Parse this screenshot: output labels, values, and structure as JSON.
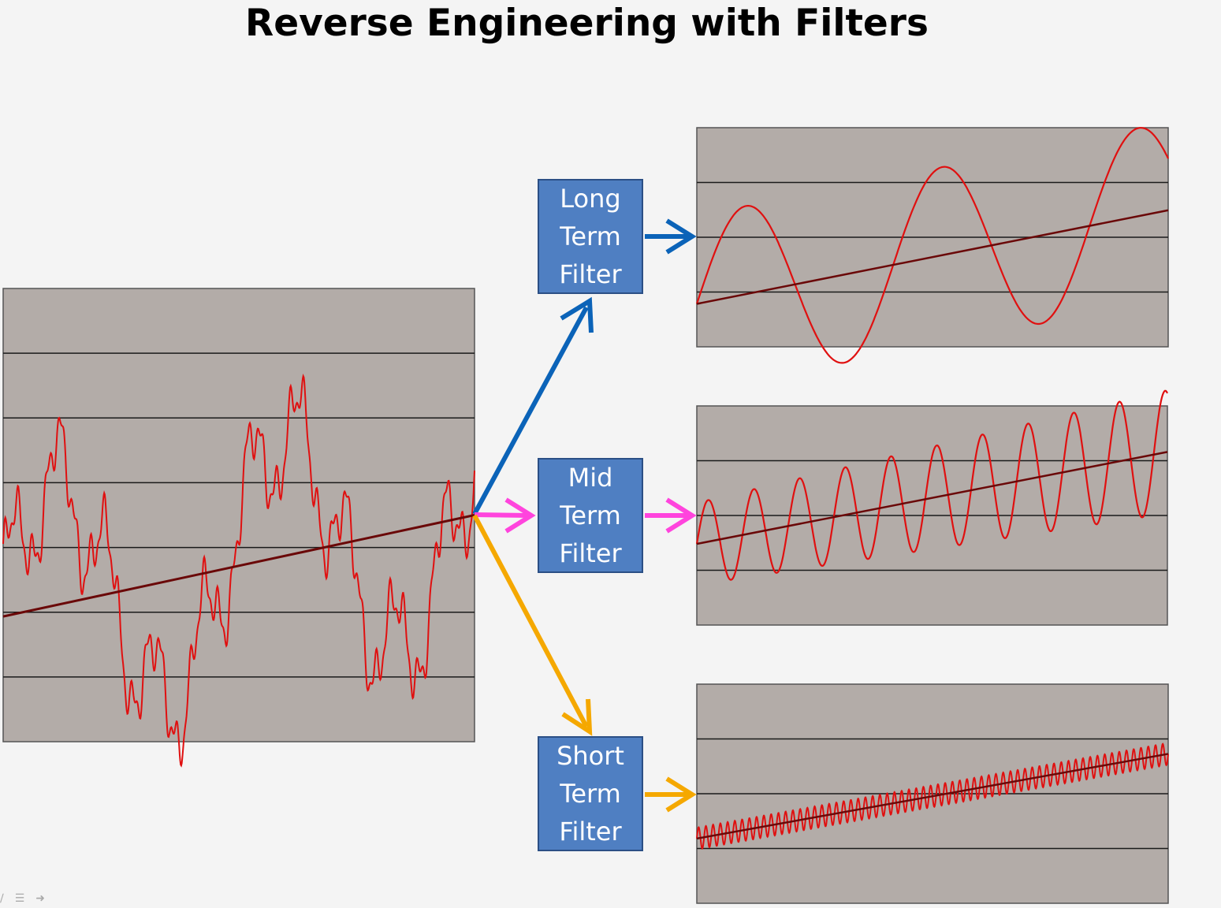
{
  "title": "Reverse Engineering with Filters",
  "filters": [
    {
      "key": "long",
      "lines": [
        "Long",
        "Term",
        "Filter"
      ]
    },
    {
      "key": "mid",
      "lines": [
        "Mid",
        "Term",
        "Filter"
      ]
    },
    {
      "key": "short",
      "lines": [
        "Short",
        "Term",
        "Filter"
      ]
    }
  ],
  "colors": {
    "plot_background": "#b3aca8",
    "signal": "#e01010",
    "trend": "#6a0808",
    "gridline": "#1a1a1a",
    "filter_box": "#4f7fc2",
    "arrow_long": "#0b63b8",
    "arrow_mid": "#ff44dd",
    "arrow_short": "#f5a800"
  },
  "signals": {
    "input": {
      "description": "composite = trend + long + mid + short",
      "trend": [
        0,
        1.7
      ]
    },
    "long": {
      "cycles": 2.4,
      "amplitude": 1.6,
      "trend": [
        0,
        1.7
      ]
    },
    "mid": {
      "cycles": 10.3,
      "amplitude": 0.95,
      "trend": [
        0,
        1.7
      ]
    },
    "short": {
      "cycles": 65,
      "amplitude": 0.22,
      "trend": [
        0,
        1.7
      ]
    }
  },
  "toolbar_icons": [
    "pen-icon",
    "menu-icon",
    "next-slide-icon"
  ]
}
